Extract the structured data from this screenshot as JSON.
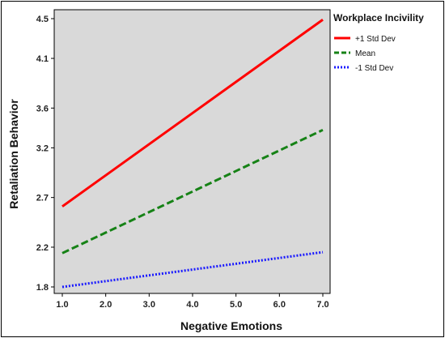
{
  "chart_data": {
    "type": "line",
    "xlabel": "Negative Emotions",
    "ylabel": "Retaliation Behavior",
    "xlim": [
      1.0,
      7.0
    ],
    "ylim": [
      1.8,
      4.5
    ],
    "x_ticks": [
      "1.0",
      "2.0",
      "3.0",
      "4.0",
      "5.0",
      "6.0",
      "7.0"
    ],
    "y_ticks": [
      "1.8",
      "2.2",
      "2.7",
      "3.2",
      "3.6",
      "4.1",
      "4.5"
    ],
    "legend_title": "Workplace Incivility",
    "legend_position": "right",
    "plot_background": "#d9d9d9",
    "x": [
      1.0,
      7.0
    ],
    "series": [
      {
        "name": "+1 Std Dev",
        "values": [
          2.61,
          4.49
        ],
        "color": "#ff0000",
        "style": "solid"
      },
      {
        "name": "Mean",
        "values": [
          2.14,
          3.38
        ],
        "color": "#168216",
        "style": "dashed"
      },
      {
        "name": "-1 Std Dev",
        "values": [
          1.8,
          2.15
        ],
        "color": "#1a1aff",
        "style": "dotted"
      }
    ]
  }
}
